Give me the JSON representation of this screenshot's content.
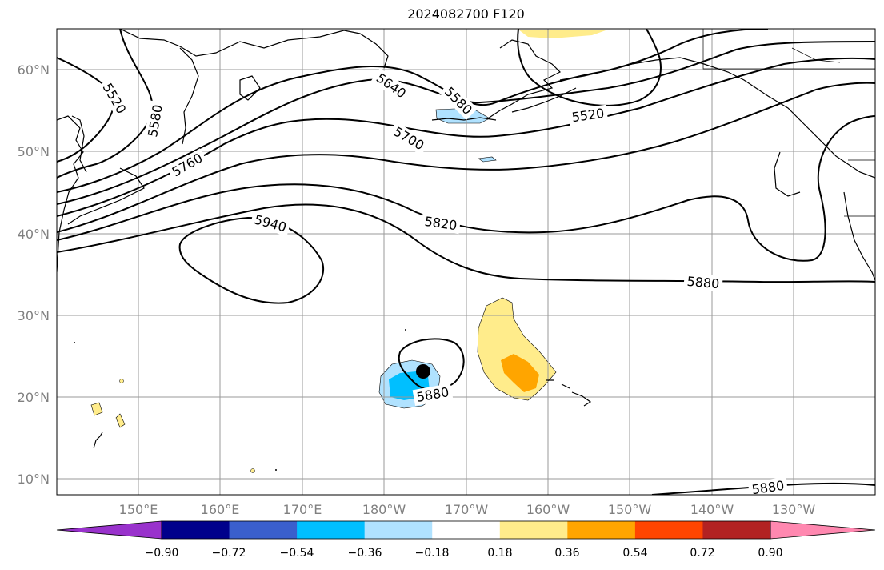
{
  "title": "2024082700 F120",
  "axes": {
    "lat_labels": [
      "60°N",
      "50°N",
      "40°N",
      "30°N",
      "20°N",
      "10°N"
    ],
    "lon_labels": [
      "150°E",
      "160°E",
      "170°E",
      "180°W",
      "170°W",
      "160°W",
      "150°W",
      "140°W",
      "130°W"
    ]
  },
  "contour_labels": [
    "5520",
    "5580",
    "5760",
    "5940",
    "5640",
    "5580",
    "5700",
    "5820",
    "5520",
    "5880",
    "5880",
    "5880"
  ],
  "colorbar": {
    "ticks": [
      "−0.90",
      "−0.72",
      "−0.54",
      "−0.36",
      "−0.18",
      "0.18",
      "0.36",
      "0.54",
      "0.72",
      "0.90"
    ],
    "colors": [
      "#9932cc",
      "#00008b",
      "#3a5fcd",
      "#00bfff",
      "#b0e2ff",
      "#ffffff",
      "#ffec8b",
      "#ffa500",
      "#ff4500",
      "#b22222",
      "#ff88b0"
    ]
  },
  "marker": {
    "label": "storm-center",
    "lat": 23,
    "lon": -175
  }
}
